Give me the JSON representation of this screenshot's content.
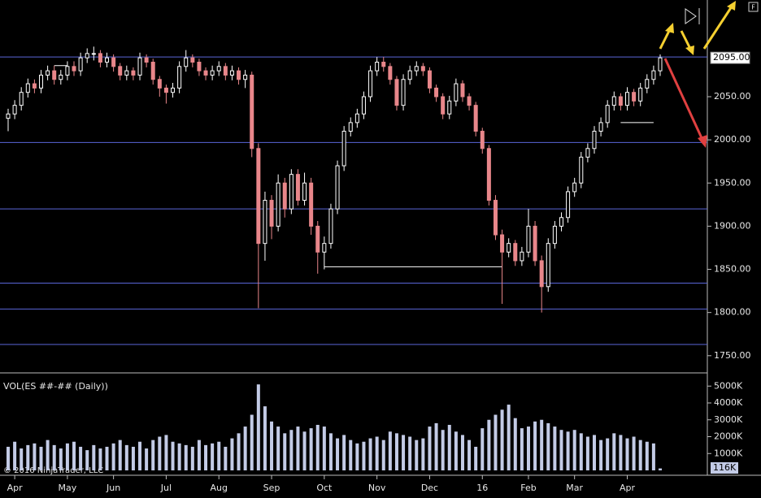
{
  "chart_data": {
    "type": "candlestick",
    "indicator_label": "VOL(ES ##-## (Daily))",
    "copyright": "© 2016 NinjaTrader, LLC",
    "categories": [
      null,
      "Apr",
      null,
      null,
      null,
      null,
      null,
      null,
      null,
      "May",
      null,
      null,
      null,
      null,
      null,
      null,
      "Jun",
      null,
      null,
      null,
      null,
      null,
      null,
      null,
      "Jul",
      null,
      null,
      null,
      null,
      null,
      null,
      null,
      "Aug",
      null,
      null,
      null,
      null,
      null,
      null,
      null,
      "Sep",
      null,
      null,
      null,
      null,
      null,
      null,
      null,
      "Oct",
      null,
      null,
      null,
      null,
      null,
      null,
      null,
      "Nov",
      null,
      null,
      null,
      null,
      null,
      null,
      null,
      "Dec",
      null,
      null,
      null,
      null,
      null,
      null,
      null,
      "16",
      null,
      null,
      null,
      null,
      null,
      null,
      "Feb",
      null,
      null,
      null,
      null,
      null,
      null,
      "Mar",
      null,
      null,
      null,
      null,
      null,
      null,
      null,
      "Apr",
      null,
      null,
      null,
      null,
      null
    ],
    "candles": [
      [
        2025,
        2036,
        2010,
        2030
      ],
      [
        2030,
        2046,
        2024,
        2040
      ],
      [
        2040,
        2061,
        2034,
        2055
      ],
      [
        2055,
        2071,
        2049,
        2065
      ],
      [
        2065,
        2070,
        2054,
        2060
      ],
      [
        2060,
        2081,
        2054,
        2075
      ],
      [
        2075,
        2086,
        2069,
        2080
      ],
      [
        2080,
        2086,
        2064,
        2070
      ],
      [
        2070,
        2081,
        2064,
        2075
      ],
      [
        2075,
        2091,
        2069,
        2085
      ],
      [
        2085,
        2091,
        2074,
        2080
      ],
      [
        2080,
        2101,
        2074,
        2095
      ],
      [
        2095,
        2106,
        2089,
        2100
      ],
      [
        2100,
        2108,
        2092,
        2100
      ],
      [
        2100,
        2104,
        2084,
        2090
      ],
      [
        2090,
        2101,
        2084,
        2095
      ],
      [
        2095,
        2099,
        2079,
        2085
      ],
      [
        2085,
        2089,
        2069,
        2075
      ],
      [
        2075,
        2086,
        2069,
        2080
      ],
      [
        2080,
        2084,
        2069,
        2075
      ],
      [
        2075,
        2101,
        2069,
        2095
      ],
      [
        2095,
        2099,
        2084,
        2090
      ],
      [
        2090,
        2094,
        2064,
        2070
      ],
      [
        2070,
        2074,
        2050,
        2060
      ],
      [
        2060,
        2064,
        2042,
        2055
      ],
      [
        2055,
        2066,
        2049,
        2060
      ],
      [
        2060,
        2091,
        2054,
        2085
      ],
      [
        2085,
        2104,
        2079,
        2095
      ],
      [
        2095,
        2099,
        2084,
        2090
      ],
      [
        2090,
        2094,
        2074,
        2080
      ],
      [
        2080,
        2084,
        2069,
        2075
      ],
      [
        2075,
        2086,
        2069,
        2080
      ],
      [
        2080,
        2091,
        2074,
        2085
      ],
      [
        2085,
        2089,
        2069,
        2075
      ],
      [
        2075,
        2086,
        2069,
        2080
      ],
      [
        2080,
        2084,
        2064,
        2070
      ],
      [
        2070,
        2081,
        2060,
        2075
      ],
      [
        2075,
        2079,
        1980,
        1990
      ],
      [
        1990,
        1996,
        1805,
        1880
      ],
      [
        1880,
        1940,
        1860,
        1930
      ],
      [
        1930,
        1936,
        1885,
        1900
      ],
      [
        1900,
        1960,
        1894,
        1950
      ],
      [
        1950,
        1956,
        1910,
        1920
      ],
      [
        1920,
        1966,
        1914,
        1960
      ],
      [
        1960,
        1966,
        1924,
        1930
      ],
      [
        1930,
        1962,
        1924,
        1950
      ],
      [
        1950,
        1956,
        1890,
        1900
      ],
      [
        1900,
        1906,
        1845,
        1870
      ],
      [
        1870,
        1888,
        1850,
        1880
      ],
      [
        1880,
        1926,
        1874,
        1920
      ],
      [
        1920,
        1976,
        1914,
        1970
      ],
      [
        1970,
        2016,
        1964,
        2010
      ],
      [
        2010,
        2026,
        2004,
        2020
      ],
      [
        2020,
        2036,
        2014,
        2030
      ],
      [
        2030,
        2056,
        2024,
        2050
      ],
      [
        2050,
        2086,
        2044,
        2080
      ],
      [
        2080,
        2096,
        2074,
        2090
      ],
      [
        2090,
        2096,
        2079,
        2085
      ],
      [
        2085,
        2089,
        2064,
        2070
      ],
      [
        2070,
        2074,
        2034,
        2040
      ],
      [
        2040,
        2076,
        2034,
        2070
      ],
      [
        2070,
        2086,
        2064,
        2080
      ],
      [
        2080,
        2091,
        2074,
        2085
      ],
      [
        2085,
        2089,
        2074,
        2080
      ],
      [
        2080,
        2084,
        2054,
        2060
      ],
      [
        2060,
        2064,
        2044,
        2050
      ],
      [
        2050,
        2054,
        2024,
        2030
      ],
      [
        2030,
        2051,
        2024,
        2045
      ],
      [
        2045,
        2071,
        2039,
        2065
      ],
      [
        2065,
        2069,
        2044,
        2050
      ],
      [
        2050,
        2054,
        2034,
        2040
      ],
      [
        2040,
        2044,
        2004,
        2010
      ],
      [
        2010,
        2014,
        1984,
        1990
      ],
      [
        1990,
        1994,
        1924,
        1930
      ],
      [
        1930,
        1936,
        1884,
        1890
      ],
      [
        1890,
        1896,
        1810,
        1870
      ],
      [
        1870,
        1886,
        1864,
        1880
      ],
      [
        1880,
        1884,
        1854,
        1860
      ],
      [
        1860,
        1876,
        1854,
        1870
      ],
      [
        1870,
        1920,
        1864,
        1900
      ],
      [
        1900,
        1906,
        1854,
        1860
      ],
      [
        1860,
        1866,
        1800,
        1830
      ],
      [
        1830,
        1886,
        1824,
        1880
      ],
      [
        1880,
        1906,
        1874,
        1900
      ],
      [
        1900,
        1916,
        1894,
        1910
      ],
      [
        1910,
        1946,
        1904,
        1940
      ],
      [
        1940,
        1956,
        1934,
        1950
      ],
      [
        1950,
        1986,
        1944,
        1980
      ],
      [
        1980,
        1996,
        1974,
        1990
      ],
      [
        1990,
        2016,
        1984,
        2010
      ],
      [
        2010,
        2026,
        2004,
        2020
      ],
      [
        2020,
        2046,
        2014,
        2040
      ],
      [
        2040,
        2056,
        2034,
        2050
      ],
      [
        2050,
        2054,
        2034,
        2040
      ],
      [
        2040,
        2061,
        2034,
        2055
      ],
      [
        2055,
        2059,
        2039,
        2045
      ],
      [
        2045,
        2066,
        2039,
        2060
      ],
      [
        2060,
        2076,
        2054,
        2070
      ],
      [
        2070,
        2086,
        2064,
        2080
      ],
      [
        2080,
        2099,
        2074,
        2095
      ]
    ],
    "volume": [
      1400,
      1700,
      1300,
      1500,
      1600,
      1400,
      1800,
      1500,
      1300,
      1600,
      1700,
      1400,
      1200,
      1500,
      1300,
      1400,
      1600,
      1800,
      1500,
      1400,
      1700,
      1300,
      1800,
      2000,
      2100,
      1700,
      1600,
      1500,
      1400,
      1800,
      1500,
      1600,
      1700,
      1400,
      1900,
      2200,
      2600,
      3300,
      5100,
      3800,
      2900,
      2600,
      2200,
      2400,
      2600,
      2300,
      2500,
      2700,
      2600,
      2200,
      1900,
      2100,
      1800,
      1600,
      1700,
      1900,
      2000,
      1800,
      2300,
      2200,
      2100,
      2000,
      1800,
      1900,
      2600,
      2800,
      2400,
      2700,
      2300,
      2100,
      1800,
      1400,
      2500,
      3000,
      3300,
      3600,
      3900,
      3100,
      2500,
      2600,
      2900,
      3000,
      2800,
      2600,
      2400,
      2300,
      2400,
      2200,
      2000,
      2100,
      1800,
      1900,
      2200,
      2100,
      1900,
      2000,
      1800,
      1700,
      1600,
      116
    ],
    "up_color": "#ffffff",
    "down_color": "#e8868a",
    "volume_color": "#c3cbe6",
    "level_color": "#5a66d8",
    "ylim": [
      1731,
      2162
    ],
    "yticks": [
      {
        "value": 1750,
        "label": "1750.00"
      },
      {
        "value": 1800,
        "label": "1800.00"
      },
      {
        "value": 1850,
        "label": "1850.00"
      },
      {
        "value": 1900,
        "label": "1900.00"
      },
      {
        "value": 1950,
        "label": "1950.00"
      },
      {
        "value": 2000,
        "label": "2000.00"
      },
      {
        "value": 2050,
        "label": "2050.00"
      }
    ],
    "vlim": [
      0,
      5735
    ],
    "vticks": [
      {
        "value": 1000,
        "label": "1000K"
      },
      {
        "value": 2000,
        "label": "2000K"
      },
      {
        "value": 3000,
        "label": "3000K"
      },
      {
        "value": 4000,
        "label": "4000K"
      },
      {
        "value": 5000,
        "label": "5000K"
      }
    ],
    "levels": [
      2096,
      1997,
      1920,
      1834,
      1804,
      1763
    ],
    "support_lines": [
      {
        "value": 2086,
        "from": 7,
        "to": 9
      },
      {
        "value": 1853,
        "from": 48,
        "to": 75
      },
      {
        "value": 2020,
        "from": 93,
        "to": 98
      }
    ],
    "last_price": {
      "value": 2095,
      "label": "2095.00"
    },
    "last_volume": {
      "value": 116,
      "label": "116K"
    }
  }
}
